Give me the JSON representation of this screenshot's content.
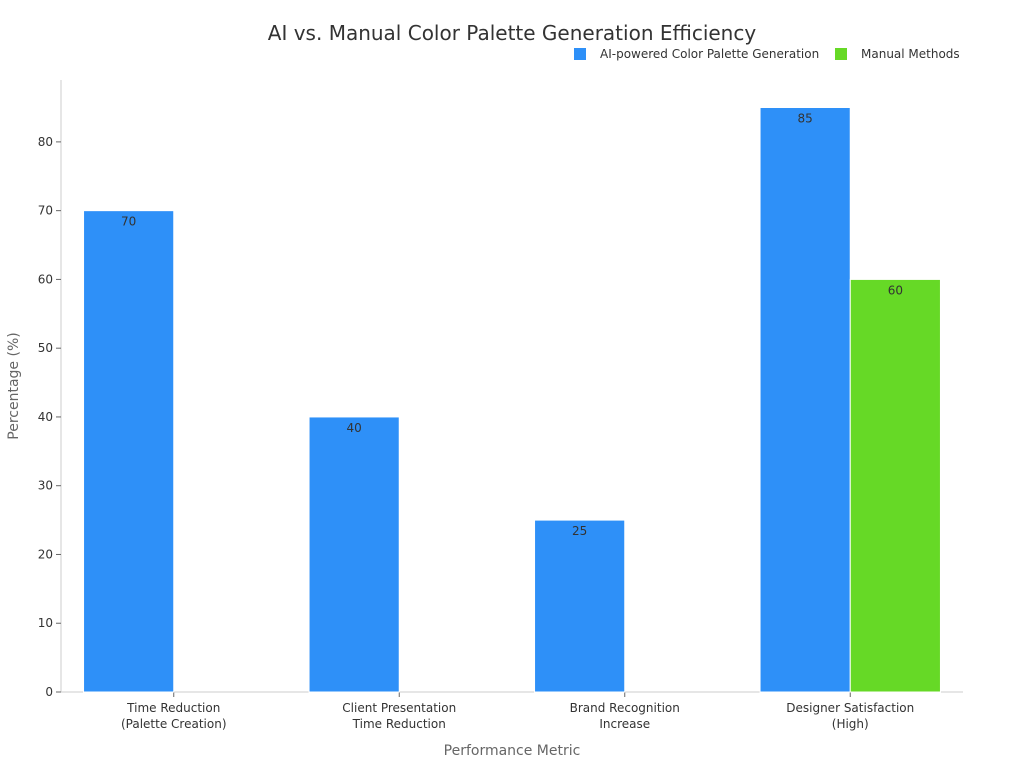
{
  "chart_data": {
    "type": "bar",
    "title": "AI vs. Manual Color Palette Generation Efficiency",
    "xlabel": "Performance Metric",
    "ylabel": "Percentage (%)",
    "ylim": [
      0,
      89
    ],
    "yticks": [
      0,
      10,
      20,
      30,
      40,
      50,
      60,
      70,
      80
    ],
    "grid": false,
    "legend_position": "top-right",
    "categories": [
      [
        "Time Reduction",
        "(Palette Creation)"
      ],
      [
        "Client Presentation",
        "Time Reduction"
      ],
      [
        "Brand Recognition",
        "Increase"
      ],
      [
        "Designer Satisfaction",
        "(High)"
      ]
    ],
    "series": [
      {
        "name": "AI-powered Color Palette Generation",
        "color": "#2E90F8",
        "values": [
          70,
          40,
          25,
          85
        ]
      },
      {
        "name": "Manual Methods",
        "color": "#66D926",
        "values": [
          null,
          null,
          null,
          60
        ]
      }
    ]
  }
}
